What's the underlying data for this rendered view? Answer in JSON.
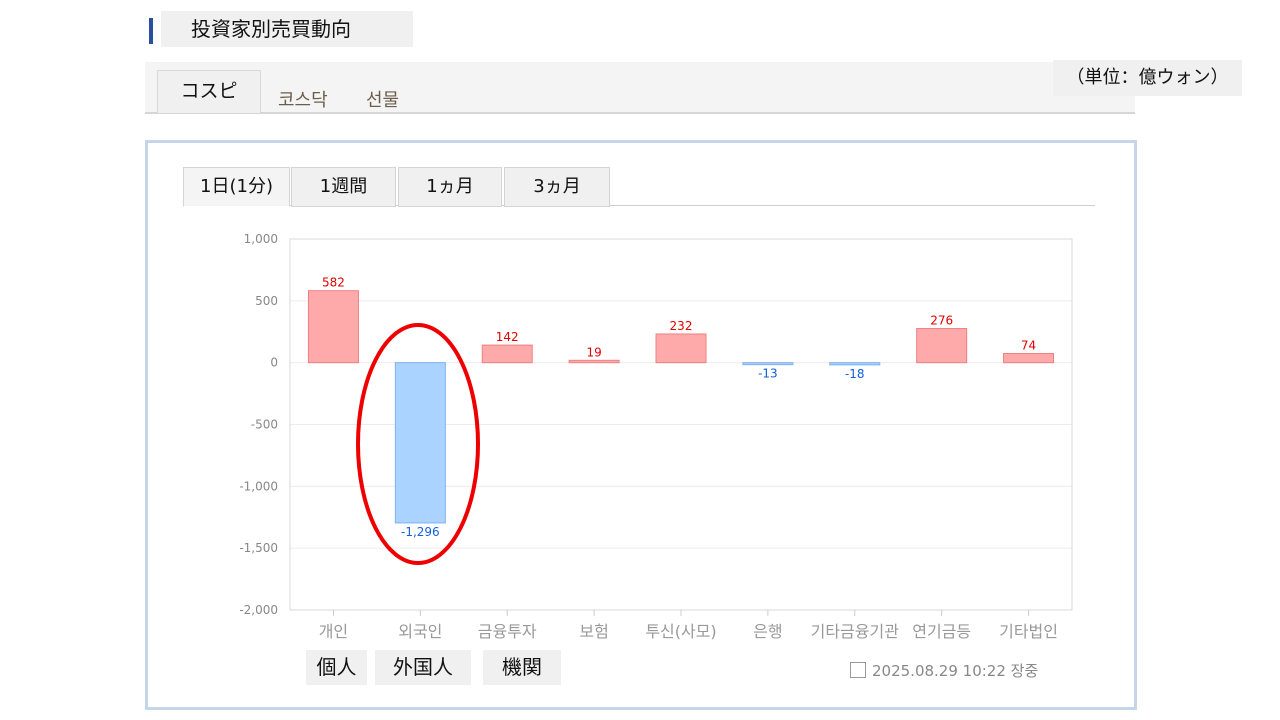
{
  "header": {
    "title": "投資家別売買動向",
    "unit": "（単位：億ウォン）"
  },
  "market_tabs": [
    {
      "label": "コスピ",
      "active": true
    },
    {
      "label": "코스닥",
      "active": false
    },
    {
      "label": "선물",
      "active": false
    }
  ],
  "period_tabs": [
    {
      "label": "1日(1分)",
      "active": true
    },
    {
      "label": "1週間"
    },
    {
      "label": "1ヵ月"
    },
    {
      "label": "3ヵ月"
    }
  ],
  "legend_boxes": [
    "個人",
    "外国人",
    "機関"
  ],
  "timestamp": "2025.08.29 10:22 장중",
  "colors": {
    "positive": "#ffaaaa",
    "positive_label": "#e00000",
    "negative": "#aad4ff",
    "negative_label": "#1060e0",
    "highlight": "#ee0000"
  },
  "chart_data": {
    "type": "bar",
    "categories": [
      "개인",
      "외국인",
      "금융투자",
      "보험",
      "투신(사모)",
      "은행",
      "기타금융기관",
      "연기금등",
      "기타법인"
    ],
    "values": [
      582,
      -1296,
      142,
      19,
      232,
      -13,
      -18,
      276,
      74
    ],
    "value_labels": [
      "582",
      "-1,296",
      "142",
      "19",
      "232",
      "-13",
      "-18",
      "276",
      "74"
    ],
    "ylim": [
      -2000,
      1000
    ],
    "yticks": [
      1000,
      500,
      0,
      -500,
      -1000,
      -1500,
      -2000
    ],
    "ytick_labels": [
      "1,000",
      "500",
      "0",
      "-500",
      "-1,000",
      "-1,500",
      "-2,000"
    ],
    "grid": true,
    "highlighted_category": "외국인"
  }
}
